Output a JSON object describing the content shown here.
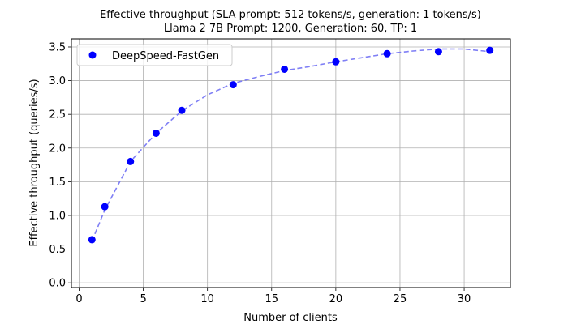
{
  "chart_data": {
    "type": "scatter",
    "title_line1": "Effective throughput (SLA prompt: 512 tokens/s, generation: 1 tokens/s)",
    "title_line2": "Llama 2 7B Prompt: 1200, Generation: 60, TP: 1",
    "xlabel": "Number of clients",
    "ylabel": "Effective throughput (queries/s)",
    "xlim": [
      -0.6,
      33.6
    ],
    "ylim": [
      -0.07,
      3.62
    ],
    "xticks": [
      0,
      5,
      10,
      15,
      20,
      25,
      30
    ],
    "yticks": [
      0.0,
      0.5,
      1.0,
      1.5,
      2.0,
      2.5,
      3.0,
      3.5
    ],
    "grid": true,
    "legend_position": "upper-left",
    "series": [
      {
        "name": "DeepSpeed-FastGen",
        "color": "#0000ff",
        "x": [
          1,
          2,
          4,
          6,
          8,
          12,
          16,
          20,
          24,
          28,
          32
        ],
        "y": [
          0.64,
          1.13,
          1.8,
          2.22,
          2.56,
          2.94,
          3.17,
          3.28,
          3.4,
          3.43,
          3.45
        ]
      }
    ],
    "fit_curve": {
      "style": "dashed",
      "color": "#7f7ff5",
      "x": [
        1,
        2,
        4,
        6,
        8,
        10,
        12,
        14,
        16,
        18,
        20,
        22,
        24,
        26,
        28,
        30,
        32
      ],
      "y": [
        0.62,
        1.08,
        1.8,
        2.22,
        2.55,
        2.79,
        2.96,
        3.06,
        3.15,
        3.21,
        3.28,
        3.34,
        3.4,
        3.44,
        3.47,
        3.47,
        3.43
      ]
    }
  }
}
